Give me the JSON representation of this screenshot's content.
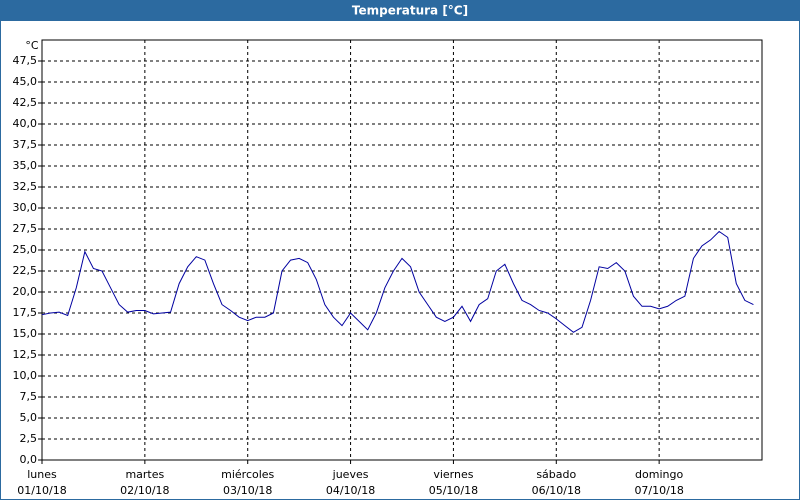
{
  "chart_data": {
    "type": "line",
    "title": "Temperatura [°C]",
    "y_unit": "°C",
    "x": [
      0,
      2,
      4,
      6,
      8,
      10,
      12,
      14,
      16,
      18,
      20,
      22,
      24,
      26,
      28,
      30,
      32,
      34,
      36,
      38,
      40,
      42,
      44,
      46,
      48,
      50,
      52,
      54,
      56,
      58,
      60,
      62,
      64,
      66,
      68,
      70,
      72,
      74,
      76,
      78,
      80,
      82,
      84,
      86,
      88,
      90,
      92,
      94,
      96,
      98,
      100,
      102,
      104,
      106,
      108,
      110,
      112,
      114,
      116,
      118,
      120,
      122,
      124,
      126,
      128,
      130,
      132,
      134,
      136,
      138,
      140,
      142,
      144,
      146,
      148,
      150,
      152,
      154,
      156,
      158,
      160,
      162,
      164,
      166
    ],
    "series": [
      {
        "name": "Temperatura",
        "color": "#0000a0",
        "values": [
          17.3,
          17.5,
          17.6,
          17.2,
          20.5,
          24.8,
          22.8,
          22.5,
          20.5,
          18.5,
          17.6,
          17.8,
          17.8,
          17.4,
          17.5,
          17.6,
          21,
          23,
          24.2,
          23.8,
          21,
          18.5,
          17.8,
          17,
          16.6,
          17,
          17,
          17.5,
          22.5,
          23.8,
          24,
          23.5,
          21.5,
          18.5,
          17,
          16,
          17.5,
          16.5,
          15.5,
          17.5,
          20.5,
          22.5,
          24,
          23,
          20,
          18.5,
          17,
          16.5,
          17,
          18.3,
          16.5,
          18.5,
          19.2,
          22.5,
          23.3,
          21,
          19,
          18.5,
          17.8,
          17.5,
          16.8,
          16,
          15.2,
          15.8,
          19,
          23,
          22.8,
          23.5,
          22.5,
          19.5,
          18.3,
          18.3,
          18,
          18.3,
          19,
          19.5,
          24,
          25.5,
          26.2,
          27.2,
          26.5,
          21,
          19,
          18.5
        ]
      }
    ],
    "xlim": [
      0,
      168
    ],
    "xticks": [
      {
        "value": 0,
        "label": "lunes"
      },
      {
        "value": 24,
        "label": "martes"
      },
      {
        "value": 48,
        "label": "miércoles"
      },
      {
        "value": 72,
        "label": "jueves"
      },
      {
        "value": 96,
        "label": "viernes"
      },
      {
        "value": 120,
        "label": "sábado"
      },
      {
        "value": 144,
        "label": "domingo"
      }
    ],
    "xtick_dates": [
      "01/10/18",
      "02/10/18",
      "03/10/18",
      "04/10/18",
      "05/10/18",
      "06/10/18",
      "07/10/18"
    ],
    "ylim": [
      0,
      50
    ],
    "yticks": [
      {
        "value": 0,
        "label": "0,0"
      },
      {
        "value": 2.5,
        "label": "2,5"
      },
      {
        "value": 5,
        "label": "5,0"
      },
      {
        "value": 7.5,
        "label": "7,5"
      },
      {
        "value": 10,
        "label": "10,0"
      },
      {
        "value": 12.5,
        "label": "12,5"
      },
      {
        "value": 15,
        "label": "15,0"
      },
      {
        "value": 17.5,
        "label": "17,5"
      },
      {
        "value": 20,
        "label": "20,0"
      },
      {
        "value": 22.5,
        "label": "22,5"
      },
      {
        "value": 25,
        "label": "25,0"
      },
      {
        "value": 27.5,
        "label": "27,5"
      },
      {
        "value": 30,
        "label": "30,0"
      },
      {
        "value": 32.5,
        "label": "32,5"
      },
      {
        "value": 35,
        "label": "35,0"
      },
      {
        "value": 37.5,
        "label": "37,5"
      },
      {
        "value": 40,
        "label": "40,0"
      },
      {
        "value": 42.5,
        "label": "42,5"
      },
      {
        "value": 45,
        "label": "45,0"
      },
      {
        "value": 47.5,
        "label": "47,5"
      }
    ],
    "grid": true
  }
}
